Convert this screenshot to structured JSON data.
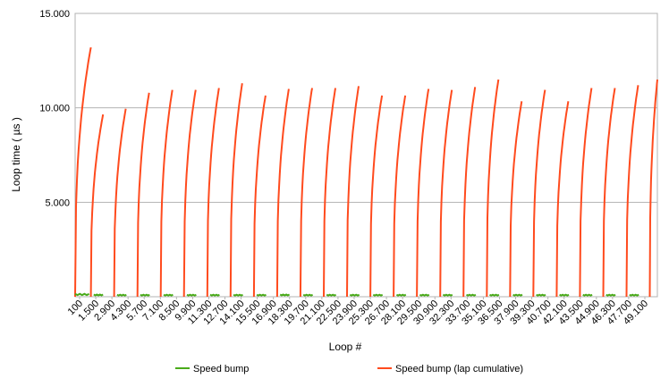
{
  "chart_data": {
    "type": "line",
    "title": "",
    "xlabel": "Loop #",
    "ylabel": "Loop time ( µs )",
    "ylim": [
      0,
      15000
    ],
    "yticks": [
      "5.000",
      "10.000",
      "15.000"
    ],
    "ytick_values": [
      5000,
      10000,
      15000
    ],
    "x_tick_labels": [
      "100",
      "1.500",
      "2.900",
      "4.300",
      "5.700",
      "7.100",
      "8.500",
      "9.900",
      "11.300",
      "12.700",
      "14.100",
      "15.500",
      "16.900",
      "18.300",
      "19.700",
      "21.100",
      "22.500",
      "23.900",
      "25.300",
      "26.700",
      "28.100",
      "29.500",
      "30.900",
      "32.300",
      "33.700",
      "35.100",
      "36.500",
      "37.900",
      "39.300",
      "40.700",
      "42.100",
      "43.500",
      "44.900",
      "46.300",
      "47.700",
      "49.100"
    ],
    "xlim": [
      100,
      50100
    ],
    "grid": "horizontal",
    "legend_position": "bottom",
    "series": [
      {
        "name": "Speed bump",
        "color": "#4aab1a",
        "description_points": "per-loop time, roughly constant near 150 µs",
        "segments": [
          {
            "x_start": 100,
            "x_end": 1300,
            "y": 150
          },
          {
            "x_start": 1700,
            "x_end": 2500,
            "y": 120
          },
          {
            "x_start": 3700,
            "x_end": 4500,
            "y": 110
          },
          {
            "x_start": 5700,
            "x_end": 6500,
            "y": 110
          },
          {
            "x_start": 7700,
            "x_end": 8500,
            "y": 110
          },
          {
            "x_start": 9700,
            "x_end": 10500,
            "y": 110
          },
          {
            "x_start": 11700,
            "x_end": 12500,
            "y": 110
          },
          {
            "x_start": 13700,
            "x_end": 14500,
            "y": 110
          },
          {
            "x_start": 15700,
            "x_end": 16500,
            "y": 110
          },
          {
            "x_start": 17700,
            "x_end": 18500,
            "y": 120
          },
          {
            "x_start": 19700,
            "x_end": 20500,
            "y": 110
          },
          {
            "x_start": 21700,
            "x_end": 22500,
            "y": 110
          },
          {
            "x_start": 23700,
            "x_end": 24500,
            "y": 110
          },
          {
            "x_start": 25700,
            "x_end": 26500,
            "y": 110
          },
          {
            "x_start": 27700,
            "x_end": 28500,
            "y": 110
          },
          {
            "x_start": 29700,
            "x_end": 30500,
            "y": 110
          },
          {
            "x_start": 31700,
            "x_end": 32500,
            "y": 110
          },
          {
            "x_start": 33700,
            "x_end": 34500,
            "y": 110
          },
          {
            "x_start": 35700,
            "x_end": 36500,
            "y": 110
          },
          {
            "x_start": 37700,
            "x_end": 38500,
            "y": 110
          },
          {
            "x_start": 39700,
            "x_end": 40500,
            "y": 110
          },
          {
            "x_start": 41700,
            "x_end": 42500,
            "y": 110
          },
          {
            "x_start": 43700,
            "x_end": 44500,
            "y": 110
          },
          {
            "x_start": 45700,
            "x_end": 46500,
            "y": 110
          },
          {
            "x_start": 47700,
            "x_end": 48500,
            "y": 110
          }
        ]
      },
      {
        "name": "Speed bump (lap cumulative)",
        "color": "#ff4b1e",
        "laps": [
          {
            "x_start": 100,
            "x_end": 1450,
            "peak": 13200
          },
          {
            "x_start": 1450,
            "x_end": 2500,
            "peak": 9650
          },
          {
            "x_start": 3450,
            "x_end": 4450,
            "peak": 9950
          },
          {
            "x_start": 5450,
            "x_end": 6450,
            "peak": 10800
          },
          {
            "x_start": 7450,
            "x_end": 8450,
            "peak": 10950
          },
          {
            "x_start": 9450,
            "x_end": 10450,
            "peak": 10950
          },
          {
            "x_start": 11450,
            "x_end": 12450,
            "peak": 11050
          },
          {
            "x_start": 13450,
            "x_end": 14450,
            "peak": 11300
          },
          {
            "x_start": 15450,
            "x_end": 16450,
            "peak": 10650
          },
          {
            "x_start": 17450,
            "x_end": 18450,
            "peak": 11000
          },
          {
            "x_start": 19450,
            "x_end": 20450,
            "peak": 11050
          },
          {
            "x_start": 21450,
            "x_end": 22450,
            "peak": 11050
          },
          {
            "x_start": 23450,
            "x_end": 24450,
            "peak": 11150
          },
          {
            "x_start": 25450,
            "x_end": 26450,
            "peak": 10650
          },
          {
            "x_start": 27450,
            "x_end": 28450,
            "peak": 10650
          },
          {
            "x_start": 29450,
            "x_end": 30450,
            "peak": 11000
          },
          {
            "x_start": 31450,
            "x_end": 32450,
            "peak": 10950
          },
          {
            "x_start": 33450,
            "x_end": 34450,
            "peak": 11100
          },
          {
            "x_start": 35450,
            "x_end": 36450,
            "peak": 11500
          },
          {
            "x_start": 37450,
            "x_end": 38450,
            "peak": 10350
          },
          {
            "x_start": 39450,
            "x_end": 40450,
            "peak": 10950
          },
          {
            "x_start": 41450,
            "x_end": 42450,
            "peak": 10350
          },
          {
            "x_start": 43450,
            "x_end": 44450,
            "peak": 11050
          },
          {
            "x_start": 45450,
            "x_end": 46450,
            "peak": 11050
          },
          {
            "x_start": 47450,
            "x_end": 48450,
            "peak": 11200
          },
          {
            "x_start": 49450,
            "x_end": 50100,
            "peak": 11500
          }
        ]
      }
    ]
  }
}
